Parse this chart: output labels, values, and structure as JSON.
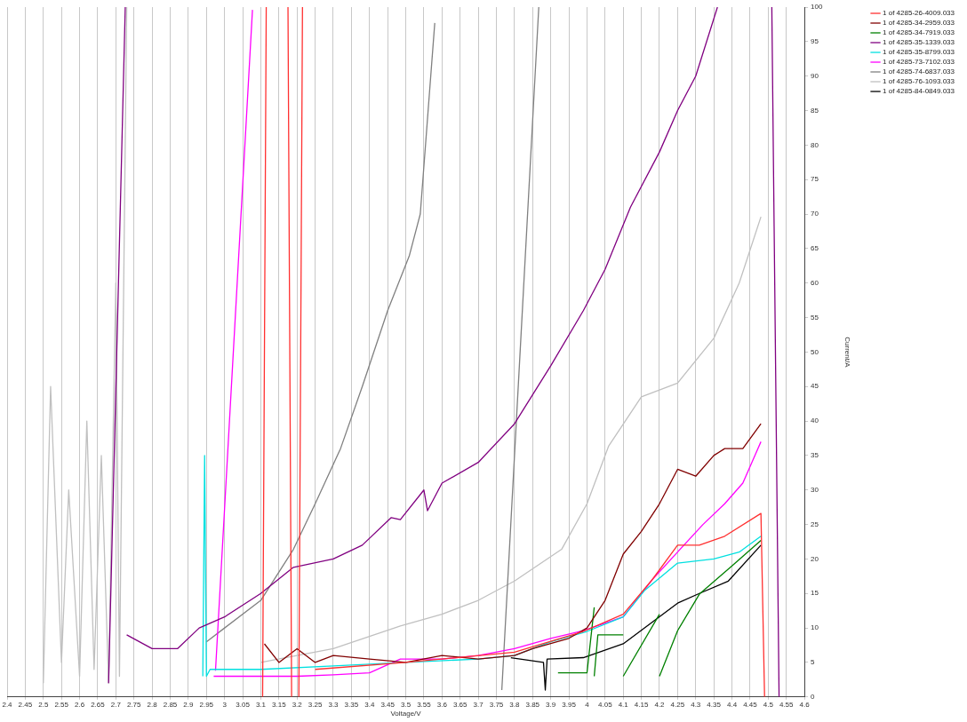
{
  "chart_data": {
    "type": "line",
    "xlabel": "Voltage/V",
    "ylabel": "Current/A",
    "xlim": [
      2.4,
      4.6
    ],
    "ylim": [
      0,
      100
    ],
    "xticks": [
      2.4,
      2.45,
      2.5,
      2.55,
      2.6,
      2.65,
      2.7,
      2.75,
      2.8,
      2.85,
      2.9,
      2.95,
      3,
      3.05,
      3.1,
      3.15,
      3.2,
      3.25,
      3.3,
      3.35,
      3.4,
      3.45,
      3.5,
      3.55,
      3.6,
      3.65,
      3.7,
      3.75,
      3.8,
      3.85,
      3.9,
      3.95,
      4,
      4.05,
      4.1,
      4.15,
      4.2,
      4.25,
      4.3,
      4.35,
      4.4,
      4.45,
      4.5,
      4.55,
      4.6
    ],
    "yticks": [
      0,
      5,
      10,
      15,
      20,
      25,
      30,
      35,
      40,
      45,
      50,
      55,
      60,
      65,
      70,
      75,
      80,
      85,
      90,
      95,
      100
    ],
    "grid": "x",
    "legend": "right",
    "line_style": "solid",
    "series": [
      {
        "name": "1 of 4285-26-4009.033",
        "color": "#ff3030",
        "x": [
          3.105,
          3.115,
          null,
          3.175,
          3.185,
          null,
          3.205,
          3.215,
          null,
          3.25,
          3.5,
          3.8,
          3.99,
          4.1,
          4.18,
          4.25,
          4.31,
          4.38,
          4.48,
          4.49
        ],
        "values": [
          0,
          100,
          null,
          100,
          0,
          null,
          0,
          100,
          null,
          4,
          5,
          6.5,
          9.5,
          12,
          17,
          22,
          22,
          23.3,
          26.6,
          0
        ]
      },
      {
        "name": "1 of 4285-34-2959.033",
        "color": "#800000",
        "x": [
          3.11,
          3.15,
          3.2,
          3.25,
          3.3,
          3.4,
          3.5,
          3.6,
          3.7,
          3.8,
          3.85,
          3.95,
          4.0,
          4.05,
          4.1,
          4.15,
          4.2,
          4.25,
          4.3,
          4.35,
          4.38,
          4.43,
          4.48
        ],
        "values": [
          7.7,
          5,
          7,
          5,
          6,
          5.5,
          5,
          6,
          5.5,
          6,
          7,
          8.5,
          10,
          14,
          20.7,
          24,
          28,
          33,
          32,
          35,
          36,
          36,
          39.6
        ]
      },
      {
        "name": "1 of 4285-34-7919.033",
        "color": "#008000",
        "x": [
          3.92,
          4.0,
          4.02,
          null,
          4.02,
          4.03,
          4.1,
          null,
          4.1,
          4.2,
          null,
          4.2,
          4.25,
          4.31,
          4.4,
          4.48
        ],
        "values": [
          3.5,
          3.5,
          13,
          null,
          3,
          9,
          9,
          null,
          3,
          12,
          null,
          3,
          9.6,
          14.9,
          19,
          22.7
        ]
      },
      {
        "name": "1 of 4285-35-1339.033",
        "color": "#800080",
        "x": [
          2.68,
          2.726,
          null,
          2.73,
          2.8,
          2.87,
          2.93,
          3.0,
          3.1,
          3.19,
          3.3,
          3.38,
          3.46,
          3.485,
          3.55,
          3.56,
          3.6,
          3.7,
          3.8,
          3.9,
          3.99,
          4.05,
          4.12,
          4.2,
          4.25,
          4.3,
          4.36,
          null,
          4.51,
          4.53
        ],
        "values": [
          2,
          100,
          null,
          9,
          7,
          7,
          10,
          11.6,
          15,
          18.8,
          20,
          22,
          26,
          25.7,
          30,
          27,
          31,
          34,
          39.6,
          48,
          56,
          62,
          71,
          79,
          85,
          90,
          100,
          null,
          100,
          0
        ]
      },
      {
        "name": "1 of 4285-35-8799.033",
        "color": "#00e0e0",
        "x": [
          2.94,
          2.945,
          2.95,
          2.96,
          3.1,
          3.3,
          3.5,
          3.7,
          3.8,
          3.9,
          4.0,
          4.1,
          4.16,
          4.25,
          4.35,
          4.42,
          4.48
        ],
        "values": [
          3,
          35,
          3,
          4,
          4,
          4.5,
          5,
          5.5,
          6,
          8,
          9.5,
          11.6,
          15.5,
          19.4,
          20,
          21,
          23.3
        ]
      },
      {
        "name": "1 of 4285-73-7102.033",
        "color": "#ff00ff",
        "x": [
          2.975,
          3.077,
          null,
          2.97,
          3.1,
          3.2,
          3.3,
          3.4,
          3.485,
          3.6,
          3.7,
          3.8,
          3.9,
          3.99,
          4.1,
          4.18,
          4.25,
          4.32,
          4.38,
          4.43,
          4.48
        ],
        "values": [
          3.8,
          99.6,
          null,
          3,
          3,
          3,
          3.2,
          3.5,
          5.5,
          5.5,
          6,
          7,
          8.5,
          9.6,
          11.6,
          17,
          21,
          25,
          28,
          31,
          37
        ]
      },
      {
        "name": "1 of 4285-74-6837.033",
        "color": "#808080",
        "x": [
          2.95,
          3.0,
          3.1,
          3.19,
          3.25,
          3.32,
          3.38,
          3.45,
          3.51,
          3.54,
          3.58,
          null,
          3.765,
          3.867
        ],
        "values": [
          8,
          10,
          14,
          21.4,
          28,
          36,
          45,
          56,
          64,
          70,
          97.7,
          null,
          1,
          100
        ]
      },
      {
        "name": "1 of 4285-76-1093.033",
        "color": "#c0c0c0",
        "x": [
          2.5,
          2.52,
          2.55,
          2.57,
          2.6,
          2.62,
          2.64,
          2.66,
          2.68,
          2.7,
          2.71,
          2.73,
          null,
          3.1,
          3.3,
          3.485,
          3.6,
          3.7,
          3.8,
          3.93,
          4.0,
          4.06,
          4.15,
          4.25,
          4.35,
          4.42,
          4.48
        ],
        "values": [
          2,
          45,
          5,
          30,
          3,
          40,
          4,
          35,
          2,
          60,
          3,
          100,
          null,
          5,
          7,
          10.3,
          12,
          14,
          16.8,
          21.4,
          28,
          36.4,
          43.5,
          45.5,
          52,
          60,
          69.6
        ]
      },
      {
        "name": "1 of 4285-84-0849.033",
        "color": "#000000",
        "x": [
          3.79,
          3.88,
          3.885,
          3.89,
          3.99,
          4.1,
          4.25,
          4.31,
          4.39,
          4.48
        ],
        "values": [
          5.7,
          5,
          1,
          5.5,
          5.7,
          7.7,
          13.6,
          15,
          16.8,
          22
        ]
      }
    ]
  }
}
